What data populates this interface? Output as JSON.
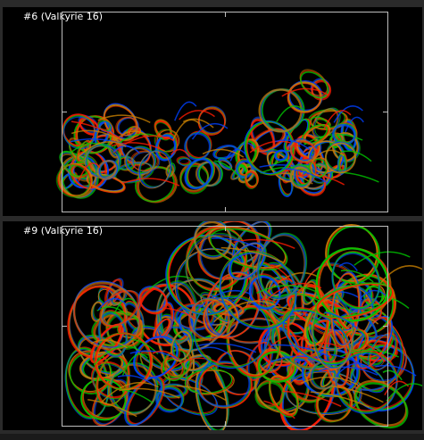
{
  "panels": [
    {
      "title": "#6 (Valkyrie 16)"
    },
    {
      "title": "#9 (Valkyrie 16)"
    }
  ],
  "colors": {
    "background": "#000000",
    "frame": "#2a2a2a",
    "viewport_border": "#bdbdbd",
    "render_palette": [
      "#ff1a00",
      "#00c800",
      "#0040ff",
      "#c88000"
    ]
  }
}
